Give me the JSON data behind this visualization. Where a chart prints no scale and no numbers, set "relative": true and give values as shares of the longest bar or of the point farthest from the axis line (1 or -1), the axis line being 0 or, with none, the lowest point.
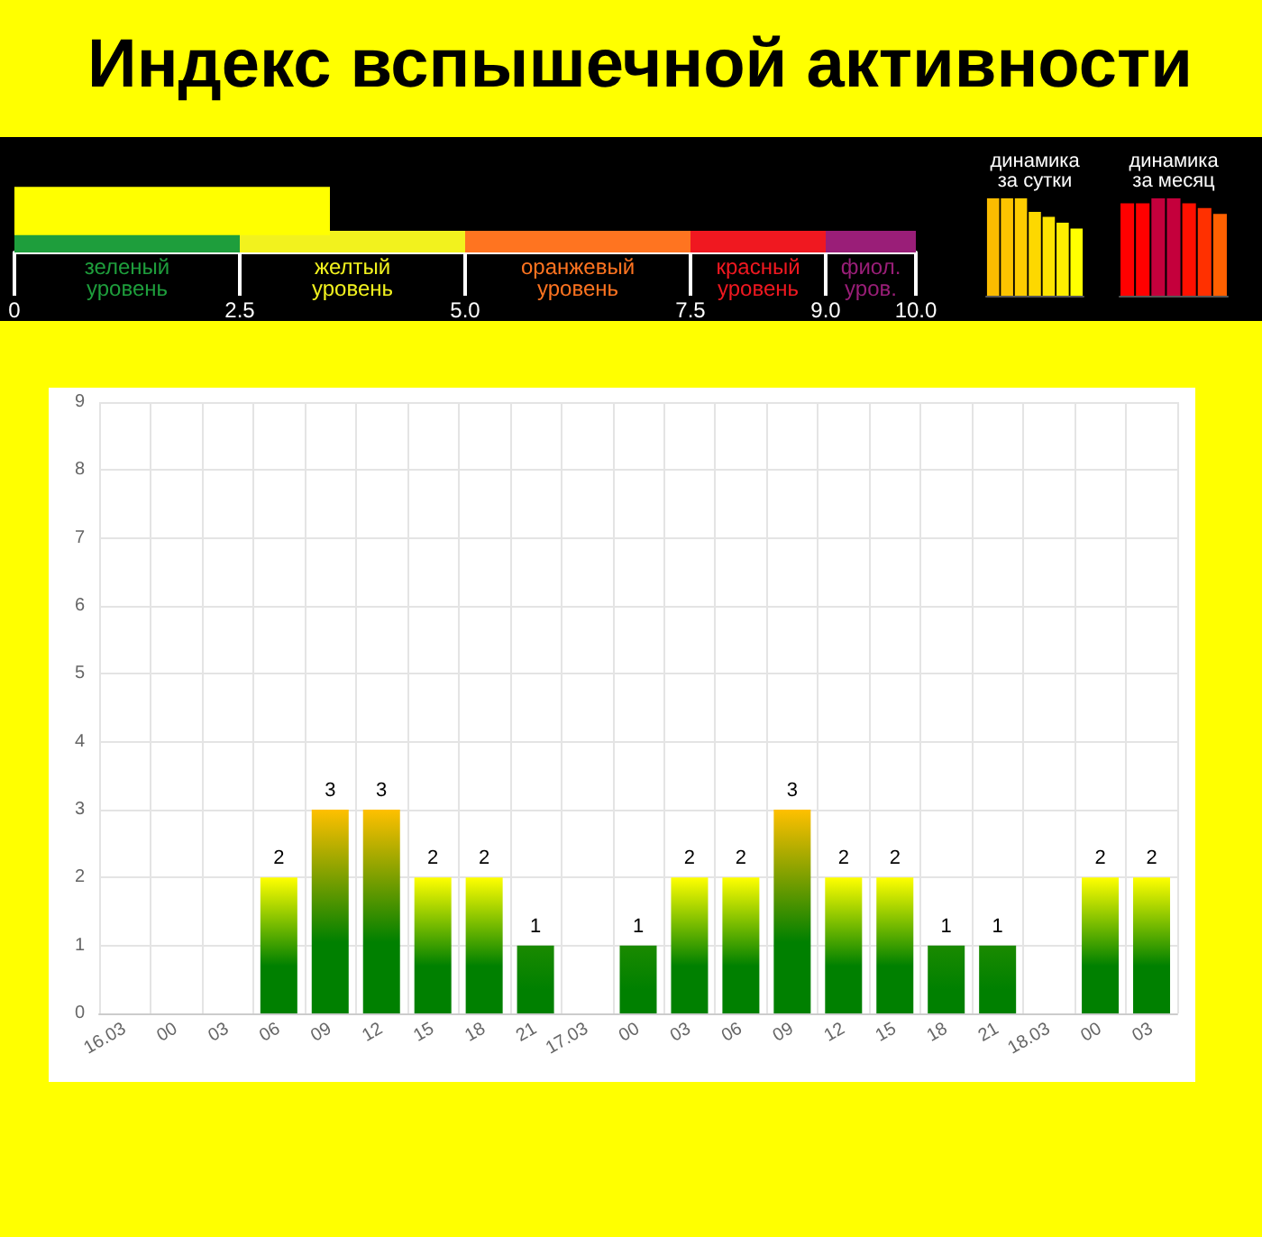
{
  "chart_data": [
    {
      "type": "bar",
      "orientation": "horizontal",
      "title": "Индекс вспышечной активности",
      "categories": [
        null
      ],
      "values": [
        3.5
      ],
      "color": "#ffff00",
      "xlim": [
        0,
        10
      ],
      "xticks": [
        0,
        2.5,
        {
          "value": 5,
          "label": "5.0"
        },
        7.5,
        {
          "value": 9,
          "label": "9.0"
        },
        {
          "value": 10,
          "label": "10.0"
        }
      ],
      "tick_labels": "x",
      "grid": false,
      "bands": [
        {
          "axis": "x",
          "from": 0,
          "to": 2.5,
          "label": "зеленый уровень",
          "color": "#1e9e3c"
        },
        {
          "axis": "x",
          "from": 2.5,
          "to": 5,
          "label": "желтый уровень",
          "color": "#f2f21e"
        },
        {
          "axis": "x",
          "from": 5,
          "to": 7.5,
          "label": "оранжевый уровень",
          "color": "#ff7420"
        },
        {
          "axis": "x",
          "from": 7.5,
          "to": 9,
          "label": "красный уровень",
          "color": "#f01820"
        },
        {
          "axis": "x",
          "from": 9,
          "to": 10,
          "label": "фиол. уров.",
          "color": "#9a1e78"
        }
      ]
    },
    {
      "type": "bar",
      "relative": true,
      "title": "динамика за сутки",
      "categories": [
        null,
        null,
        null,
        null,
        null,
        null,
        null
      ],
      "values": [
        1,
        1,
        1,
        0.86,
        0.81,
        0.75,
        0.69
      ],
      "colors": [
        "#fbbc00",
        "#fcc400",
        "#fdcc00",
        "#fdd800",
        "#fee400",
        "#ffee00",
        "#ffff00"
      ]
    },
    {
      "type": "bar",
      "relative": true,
      "title": "динамика за месяц",
      "categories": [
        null,
        null,
        null,
        null,
        null,
        null,
        null
      ],
      "values": [
        0.95,
        0.95,
        1,
        1,
        0.95,
        0.9,
        0.84
      ],
      "colors": [
        "#ff0000",
        "#ff0000",
        "#c4003c",
        "#c4003c",
        "#ff1000",
        "#ff3000",
        "#ff6000"
      ]
    },
    {
      "type": "bar",
      "categories": [
        "16.03",
        "00",
        "03",
        "06",
        "09",
        "12",
        "15",
        "18",
        "21",
        "17.03",
        "00",
        "03",
        "06",
        "09",
        "12",
        "15",
        "18",
        "21",
        "18.03",
        "00",
        "03"
      ],
      "ylim": [
        0,
        9
      ],
      "yticks": [
        0,
        1,
        2,
        3,
        4,
        5,
        6,
        7,
        8,
        9
      ],
      "grid": true,
      "series": [
        {
          "color": "#008000",
          "colors": [
            "#008000",
            "#008000",
            "#008000",
            "#ffff00",
            "#ffc000",
            "#ffc000",
            "#ffff00",
            "#ffff00",
            "#1a8a00",
            "#008000",
            "#1a8a00",
            "#ffff00",
            "#ffff00",
            "#ffc000",
            "#ffff00",
            "#ffff00",
            "#1a8a00",
            "#1a8a00",
            "#008000",
            "#ffff00",
            "#ffff00"
          ],
          "values": [
            0,
            0,
            0,
            2,
            3,
            3,
            2,
            2,
            1,
            0,
            1,
            2,
            2,
            3,
            2,
            2,
            1,
            1,
            0,
            2,
            2
          ],
          "value_labels": [
            null,
            null,
            null,
            "2",
            "3",
            "3",
            "2",
            "2",
            "1",
            null,
            "1",
            "2",
            "2",
            "3",
            "2",
            "2",
            "1",
            "1",
            null,
            "2",
            "2"
          ]
        }
      ]
    }
  ]
}
